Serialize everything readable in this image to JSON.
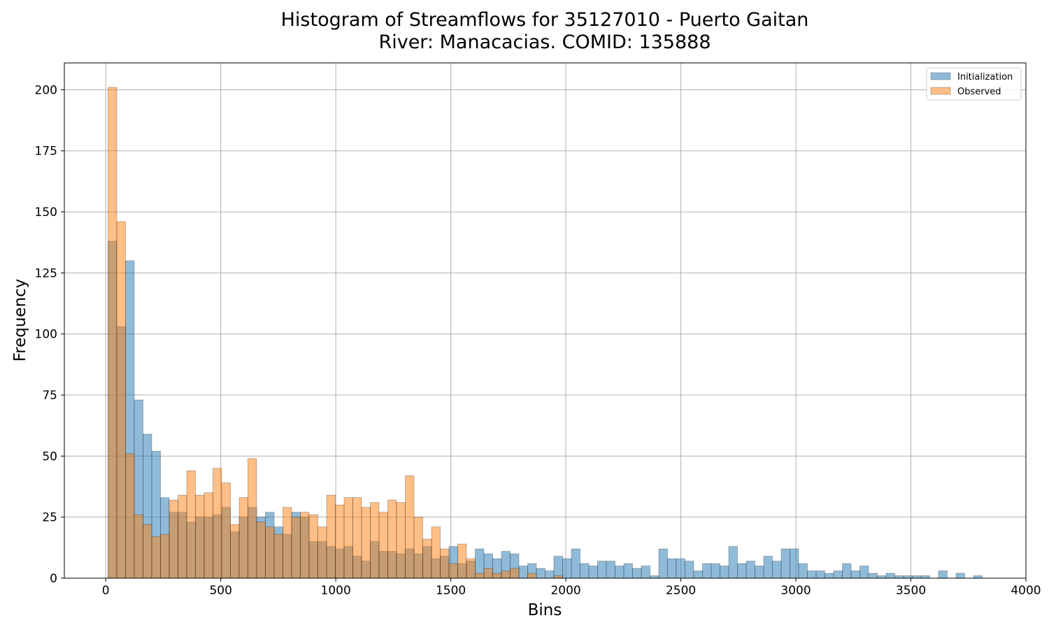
{
  "chart_data": {
    "type": "bar",
    "title": "Histogram of Streamflows for 35127010 - Puerto Gaitan",
    "subtitle": "River: Manacacias. COMID: 135888",
    "xlabel": "Bins",
    "ylabel": "Frequency",
    "xlim": [
      -180,
      4000
    ],
    "ylim": [
      0,
      211
    ],
    "xticks": [
      0,
      500,
      1000,
      1500,
      2000,
      2500,
      3000,
      3500,
      4000
    ],
    "yticks": [
      0,
      25,
      50,
      75,
      100,
      125,
      150,
      175,
      200
    ],
    "grid": true,
    "legend_position": "top-right",
    "bin_start": 10,
    "bin_width": 38,
    "series": [
      {
        "name": "Initialization",
        "color": "#1f77b4",
        "values": [
          138,
          103,
          130,
          73,
          59,
          52,
          33,
          27,
          27,
          23,
          25,
          25,
          26,
          29,
          19,
          25,
          29,
          25,
          27,
          21,
          18,
          27,
          25,
          15,
          15,
          13,
          12,
          13,
          9,
          7,
          15,
          11,
          11,
          10,
          12,
          10,
          13,
          8,
          9,
          13,
          6,
          7,
          12,
          10,
          8,
          11,
          10,
          5,
          6,
          4,
          3,
          9,
          8,
          12,
          6,
          5,
          7,
          7,
          5,
          6,
          4,
          5,
          1,
          12,
          8,
          8,
          7,
          3,
          6,
          6,
          5,
          13,
          6,
          7,
          5,
          9,
          7,
          12,
          12,
          6,
          3,
          3,
          2,
          3,
          6,
          3,
          5,
          2,
          1,
          2,
          1,
          1,
          1,
          1,
          0,
          3,
          0,
          2,
          0,
          1
        ]
      },
      {
        "name": "Observed",
        "color": "#ff7f0e",
        "values": [
          201,
          146,
          51,
          26,
          22,
          17,
          18,
          32,
          34,
          44,
          34,
          35,
          45,
          39,
          22,
          33,
          49,
          23,
          21,
          18,
          29,
          25,
          27,
          26,
          21,
          34,
          30,
          33,
          33,
          29,
          31,
          27,
          32,
          31,
          42,
          25,
          16,
          21,
          12,
          6,
          14,
          8,
          2,
          4,
          2,
          3,
          4,
          0,
          2,
          0,
          0,
          1
        ]
      }
    ]
  }
}
